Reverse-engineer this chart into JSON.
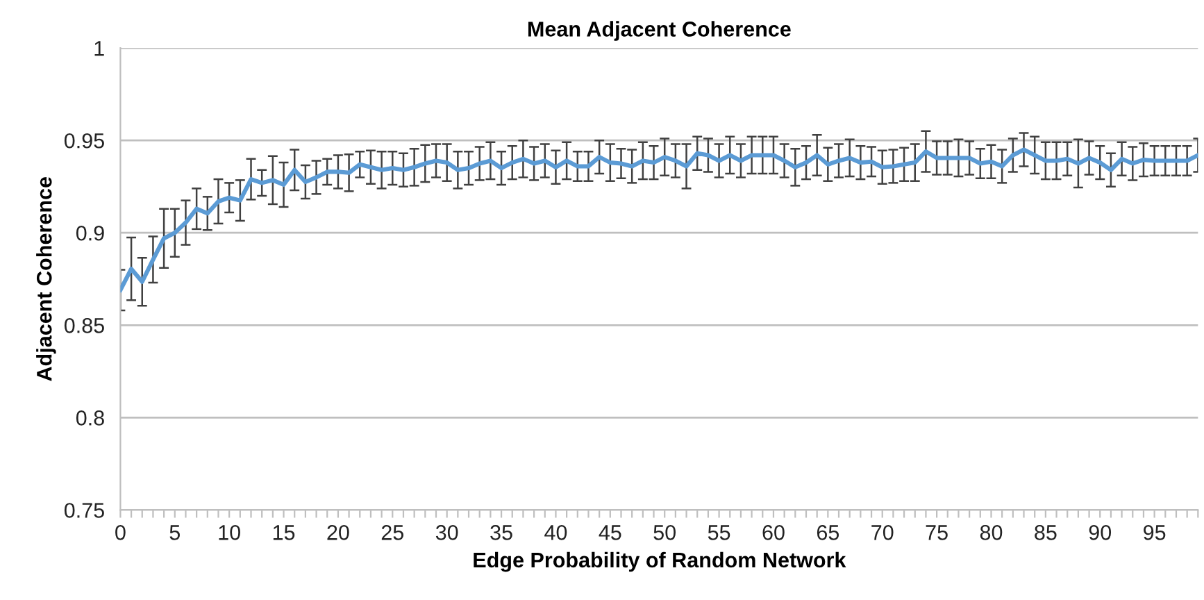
{
  "chart_data": {
    "type": "line",
    "title": "Mean Adjacent Coherence",
    "xlabel": "Edge Probability of Random Network",
    "ylabel": "Adjacent Coherence",
    "x": [
      0,
      1,
      2,
      3,
      4,
      5,
      6,
      7,
      8,
      9,
      10,
      11,
      12,
      13,
      14,
      15,
      16,
      17,
      18,
      19,
      20,
      21,
      22,
      23,
      24,
      25,
      26,
      27,
      28,
      29,
      30,
      31,
      32,
      33,
      34,
      35,
      36,
      37,
      38,
      39,
      40,
      41,
      42,
      43,
      44,
      45,
      46,
      47,
      48,
      49,
      50,
      51,
      52,
      53,
      54,
      55,
      56,
      57,
      58,
      59,
      60,
      61,
      62,
      63,
      64,
      65,
      66,
      67,
      68,
      69,
      70,
      71,
      72,
      73,
      74,
      75,
      76,
      77,
      78,
      79,
      80,
      81,
      82,
      83,
      84,
      85,
      86,
      87,
      88,
      89,
      90,
      91,
      92,
      93,
      94,
      95,
      96,
      97,
      98,
      99
    ],
    "series": [
      {
        "color": "#5b9bd5",
        "values": [
          0.869,
          0.8805,
          0.8735,
          0.8855,
          0.897,
          0.9,
          0.9055,
          0.913,
          0.9105,
          0.917,
          0.919,
          0.9175,
          0.929,
          0.927,
          0.9285,
          0.926,
          0.934,
          0.9275,
          0.93,
          0.933,
          0.933,
          0.9325,
          0.937,
          0.9355,
          0.934,
          0.935,
          0.934,
          0.9355,
          0.9375,
          0.939,
          0.938,
          0.934,
          0.935,
          0.9375,
          0.939,
          0.935,
          0.938,
          0.94,
          0.9375,
          0.939,
          0.9355,
          0.939,
          0.936,
          0.936,
          0.941,
          0.938,
          0.9375,
          0.936,
          0.939,
          0.938,
          0.941,
          0.939,
          0.936,
          0.943,
          0.942,
          0.939,
          0.942,
          0.939,
          0.942,
          0.942,
          0.942,
          0.939,
          0.9355,
          0.938,
          0.942,
          0.937,
          0.939,
          0.9405,
          0.938,
          0.9385,
          0.9355,
          0.936,
          0.937,
          0.938,
          0.944,
          0.9405,
          0.9405,
          0.9405,
          0.9405,
          0.9375,
          0.9385,
          0.936,
          0.942,
          0.945,
          0.942,
          0.939,
          0.939,
          0.94,
          0.9375,
          0.9405,
          0.938,
          0.934,
          0.94,
          0.9375,
          0.9395,
          0.939,
          0.939,
          0.939,
          0.939,
          0.942
        ],
        "errors": [
          0.011,
          0.017,
          0.013,
          0.0125,
          0.016,
          0.013,
          0.012,
          0.011,
          0.009,
          0.012,
          0.008,
          0.011,
          0.011,
          0.007,
          0.013,
          0.012,
          0.011,
          0.009,
          0.009,
          0.007,
          0.009,
          0.01,
          0.007,
          0.009,
          0.01,
          0.009,
          0.009,
          0.01,
          0.01,
          0.009,
          0.01,
          0.01,
          0.009,
          0.009,
          0.01,
          0.009,
          0.009,
          0.01,
          0.009,
          0.009,
          0.009,
          0.01,
          0.008,
          0.008,
          0.009,
          0.01,
          0.008,
          0.009,
          0.01,
          0.009,
          0.01,
          0.009,
          0.012,
          0.009,
          0.009,
          0.009,
          0.01,
          0.009,
          0.01,
          0.01,
          0.01,
          0.009,
          0.01,
          0.009,
          0.011,
          0.009,
          0.009,
          0.01,
          0.009,
          0.008,
          0.009,
          0.009,
          0.009,
          0.01,
          0.011,
          0.009,
          0.009,
          0.01,
          0.009,
          0.008,
          0.009,
          0.009,
          0.009,
          0.009,
          0.01,
          0.01,
          0.01,
          0.009,
          0.013,
          0.009,
          0.009,
          0.009,
          0.009,
          0.009,
          0.009,
          0.008,
          0.008,
          0.008,
          0.008,
          0.009
        ]
      }
    ],
    "xlim": [
      0,
      99
    ],
    "xticks": [
      0,
      {
        "value": 1,
        "label": null
      },
      {
        "value": 2,
        "label": null
      },
      {
        "value": 3,
        "label": null
      },
      {
        "value": 4,
        "label": null
      },
      5,
      {
        "value": 6,
        "label": null
      },
      {
        "value": 7,
        "label": null
      },
      {
        "value": 8,
        "label": null
      },
      {
        "value": 9,
        "label": null
      },
      10,
      {
        "value": 11,
        "label": null
      },
      {
        "value": 12,
        "label": null
      },
      {
        "value": 13,
        "label": null
      },
      {
        "value": 14,
        "label": null
      },
      15,
      {
        "value": 16,
        "label": null
      },
      {
        "value": 17,
        "label": null
      },
      {
        "value": 18,
        "label": null
      },
      {
        "value": 19,
        "label": null
      },
      20,
      {
        "value": 21,
        "label": null
      },
      {
        "value": 22,
        "label": null
      },
      {
        "value": 23,
        "label": null
      },
      {
        "value": 24,
        "label": null
      },
      25,
      {
        "value": 26,
        "label": null
      },
      {
        "value": 27,
        "label": null
      },
      {
        "value": 28,
        "label": null
      },
      {
        "value": 29,
        "label": null
      },
      30,
      {
        "value": 31,
        "label": null
      },
      {
        "value": 32,
        "label": null
      },
      {
        "value": 33,
        "label": null
      },
      {
        "value": 34,
        "label": null
      },
      35,
      {
        "value": 36,
        "label": null
      },
      {
        "value": 37,
        "label": null
      },
      {
        "value": 38,
        "label": null
      },
      {
        "value": 39,
        "label": null
      },
      40,
      {
        "value": 41,
        "label": null
      },
      {
        "value": 42,
        "label": null
      },
      {
        "value": 43,
        "label": null
      },
      {
        "value": 44,
        "label": null
      },
      45,
      {
        "value": 46,
        "label": null
      },
      {
        "value": 47,
        "label": null
      },
      {
        "value": 48,
        "label": null
      },
      {
        "value": 49,
        "label": null
      },
      50,
      {
        "value": 51,
        "label": null
      },
      {
        "value": 52,
        "label": null
      },
      {
        "value": 53,
        "label": null
      },
      {
        "value": 54,
        "label": null
      },
      55,
      {
        "value": 56,
        "label": null
      },
      {
        "value": 57,
        "label": null
      },
      {
        "value": 58,
        "label": null
      },
      {
        "value": 59,
        "label": null
      },
      60,
      {
        "value": 61,
        "label": null
      },
      {
        "value": 62,
        "label": null
      },
      {
        "value": 63,
        "label": null
      },
      {
        "value": 64,
        "label": null
      },
      65,
      {
        "value": 66,
        "label": null
      },
      {
        "value": 67,
        "label": null
      },
      {
        "value": 68,
        "label": null
      },
      {
        "value": 69,
        "label": null
      },
      70,
      {
        "value": 71,
        "label": null
      },
      {
        "value": 72,
        "label": null
      },
      {
        "value": 73,
        "label": null
      },
      {
        "value": 74,
        "label": null
      },
      75,
      {
        "value": 76,
        "label": null
      },
      {
        "value": 77,
        "label": null
      },
      {
        "value": 78,
        "label": null
      },
      {
        "value": 79,
        "label": null
      },
      80,
      {
        "value": 81,
        "label": null
      },
      {
        "value": 82,
        "label": null
      },
      {
        "value": 83,
        "label": null
      },
      {
        "value": 84,
        "label": null
      },
      85,
      {
        "value": 86,
        "label": null
      },
      {
        "value": 87,
        "label": null
      },
      {
        "value": 88,
        "label": null
      },
      {
        "value": 89,
        "label": null
      },
      90,
      {
        "value": 91,
        "label": null
      },
      {
        "value": 92,
        "label": null
      },
      {
        "value": 93,
        "label": null
      },
      {
        "value": 94,
        "label": null
      },
      95,
      {
        "value": 96,
        "label": null
      },
      {
        "value": 97,
        "label": null
      },
      {
        "value": 98,
        "label": null
      },
      {
        "value": 99,
        "label": null
      }
    ],
    "ylim": [
      0.75,
      1
    ],
    "yticks": [
      0.75,
      0.8,
      0.85,
      0.9,
      0.95,
      1
    ],
    "grid": "y",
    "marker": "none",
    "line_style": "solid"
  }
}
